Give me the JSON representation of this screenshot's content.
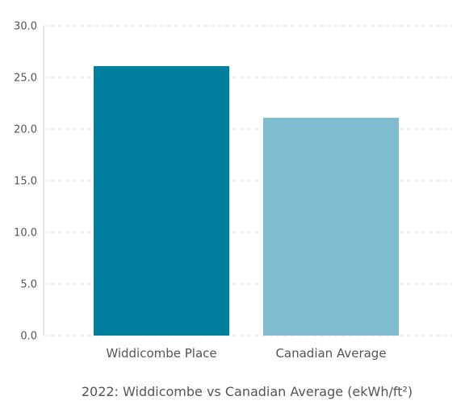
{
  "chart_data": {
    "type": "bar",
    "categories": [
      "Widdicombe Place",
      "Canadian Average"
    ],
    "values": [
      26.1,
      21.1
    ],
    "colors": [
      "#007f9f",
      "#80bdd1"
    ],
    "title": "2022: Widdicombe vs Canadian Average (ekWh/ft²)",
    "ylim": [
      0,
      30
    ],
    "yticks": [
      "0.0",
      "5.0",
      "10.0",
      "15.0",
      "20.0",
      "25.0",
      "30.0"
    ],
    "grid": true,
    "legend": "none"
  }
}
